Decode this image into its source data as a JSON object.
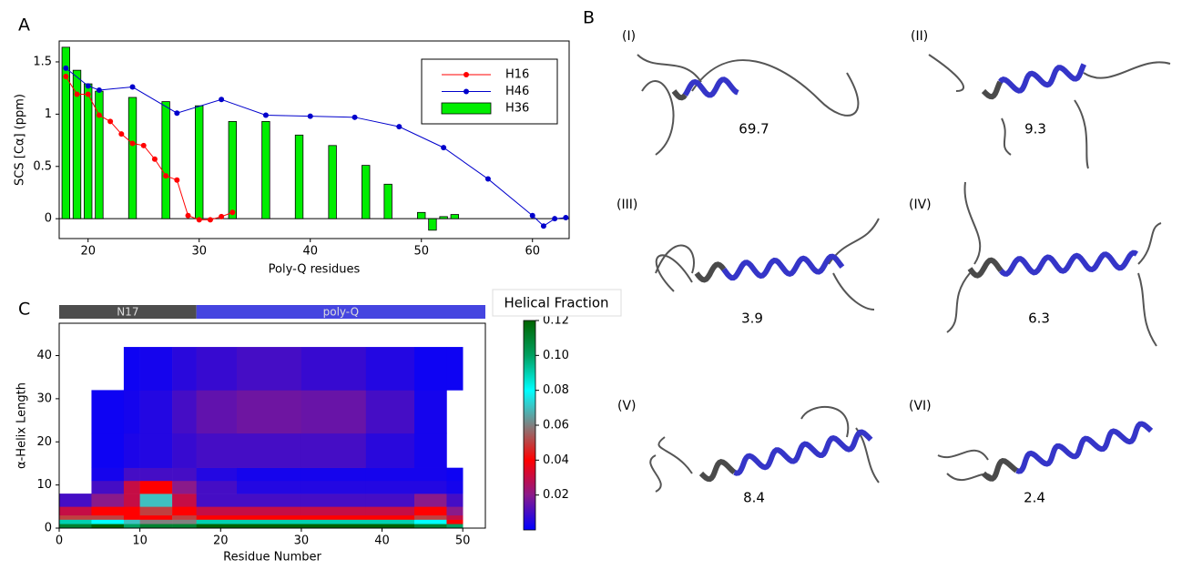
{
  "panel_labels": [
    "A",
    "B",
    "C"
  ],
  "chart_data": [
    {
      "type": "combo",
      "xlabel": "Poly-Q residues",
      "ylabel": "SCS [Cα] (ppm)",
      "xlim": [
        17.4,
        63.3
      ],
      "ylim": [
        -0.19,
        1.7
      ],
      "xticks": [
        20,
        30,
        40,
        50,
        60
      ],
      "yticks": [
        0,
        0.5,
        1,
        1.5
      ],
      "legend": "upper right",
      "series": [
        {
          "name": "H16",
          "type": "line",
          "color": "#ff0000",
          "x": [
            18,
            19,
            20,
            21,
            22,
            23,
            24,
            25,
            26,
            27,
            28,
            29,
            30,
            31,
            32,
            33
          ],
          "values": [
            1.36,
            1.19,
            1.19,
            0.99,
            0.93,
            0.81,
            0.72,
            0.7,
            0.57,
            0.41,
            0.37,
            0.03,
            -0.01,
            -0.01,
            0.02,
            0.06
          ]
        },
        {
          "name": "H46",
          "type": "line",
          "color": "#0000cc",
          "x": [
            18,
            20,
            21,
            24,
            28,
            32,
            36,
            40,
            44,
            48,
            52,
            56,
            60,
            61,
            62,
            63
          ],
          "values": [
            1.44,
            1.27,
            1.23,
            1.26,
            1.01,
            1.14,
            0.99,
            0.98,
            0.97,
            0.88,
            0.68,
            0.38,
            0.03,
            -0.07,
            0.0,
            0.01
          ]
        },
        {
          "name": "H36",
          "type": "bar",
          "color": "#00ee00",
          "x": [
            18,
            19,
            20,
            21,
            24,
            27,
            30,
            33,
            36,
            39,
            42,
            45,
            47,
            50,
            51,
            52,
            53
          ],
          "values": [
            1.64,
            1.42,
            1.29,
            1.22,
            1.16,
            1.12,
            1.08,
            0.93,
            0.93,
            0.8,
            0.7,
            0.51,
            0.33,
            0.06,
            -0.11,
            0.02,
            0.04
          ]
        }
      ]
    },
    {
      "type": "heatmap",
      "xlabel": "Residue Number",
      "ylabel": "α-Helix Length",
      "xlim": [
        0,
        52.8
      ],
      "ylim": [
        0,
        47.5
      ],
      "xticks": [
        0,
        10,
        20,
        30,
        40,
        50
      ],
      "yticks": [
        0,
        10,
        20,
        30,
        40
      ],
      "x_edges": [
        0,
        4,
        8,
        10,
        14,
        17,
        22,
        30,
        38,
        44,
        48,
        50,
        52
      ],
      "y_edges": [
        0,
        1,
        2,
        3,
        5,
        8,
        11,
        14,
        22,
        32,
        42
      ],
      "values": [
        [
          0.11,
          0.12,
          0.1,
          0.11,
          0.11,
          0.12,
          0.12,
          0.12,
          0.12,
          0.11,
          0.1,
          null
        ],
        [
          0.09,
          0.08,
          0.07,
          0.06,
          0.06,
          0.09,
          0.09,
          0.09,
          0.09,
          0.08,
          0.04,
          null
        ],
        [
          0.05,
          0.05,
          0.04,
          0.04,
          0.05,
          0.04,
          0.04,
          0.04,
          0.04,
          0.05,
          0.03,
          null
        ],
        [
          0.03,
          0.04,
          0.04,
          0.05,
          0.04,
          0.03,
          0.03,
          0.03,
          0.03,
          0.04,
          0.02,
          null
        ],
        [
          0.01,
          0.02,
          0.03,
          0.07,
          0.03,
          0.01,
          0.01,
          0.01,
          0.01,
          0.02,
          0.01,
          null
        ],
        [
          null,
          0.01,
          0.03,
          0.04,
          0.02,
          0.01,
          0.005,
          0.005,
          0.005,
          0.005,
          0.003,
          null
        ],
        [
          null,
          0.003,
          0.01,
          0.01,
          0.01,
          0.005,
          0.003,
          0.003,
          0.003,
          0.003,
          0.002,
          null
        ],
        [
          null,
          0.002,
          0.004,
          0.005,
          0.008,
          0.01,
          0.01,
          0.01,
          0.006,
          0.003,
          null,
          null
        ],
        [
          null,
          0.002,
          0.003,
          0.005,
          0.01,
          0.014,
          0.016,
          0.015,
          0.01,
          0.003,
          null,
          null
        ],
        [
          null,
          null,
          0.002,
          0.003,
          0.006,
          0.008,
          0.01,
          0.008,
          0.005,
          0.002,
          0.002,
          null
        ]
      ],
      "clim": [
        0,
        0.12
      ],
      "colormap": [
        "#0000ff",
        "#8a1a8a",
        "#ff0000",
        "#808080",
        "#00ffff",
        "#00a060",
        "#006400"
      ],
      "colorbar_label": "Helical Fraction",
      "colorbar_ticks": [
        0.02,
        0.04,
        0.06,
        0.08,
        {
          "value": 0.1,
          "label": "0.10"
        },
        0.12
      ],
      "segments": [
        {
          "label": "N17",
          "start": 0,
          "end": 17,
          "color": "#4d4d4d"
        },
        {
          "label": "poly-Q",
          "start": 17,
          "end": 52.8,
          "color": "#4545e0"
        }
      ]
    }
  ],
  "structures": [
    {
      "label": "(I)",
      "population": 69.7
    },
    {
      "label": "(II)",
      "population": 9.3
    },
    {
      "label": "(III)",
      "population": 3.9
    },
    {
      "label": "(IV)",
      "population": 6.3
    },
    {
      "label": "(V)",
      "population": 8.4
    },
    {
      "label": "(VI)",
      "population": 2.4
    }
  ]
}
